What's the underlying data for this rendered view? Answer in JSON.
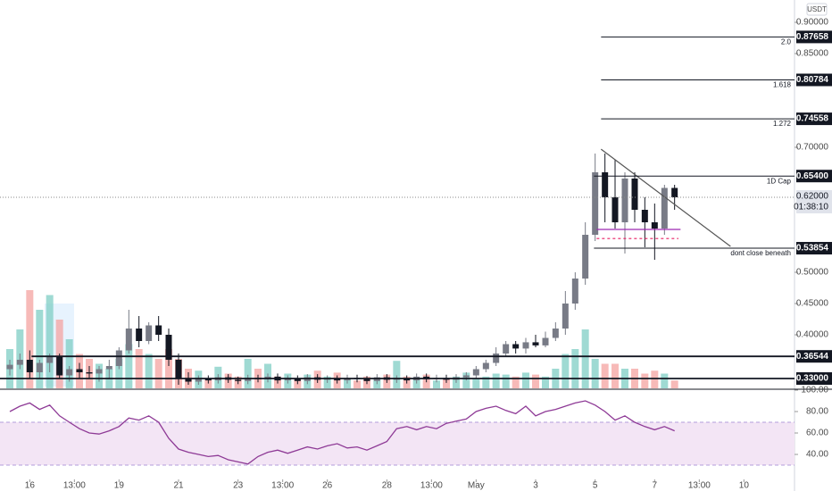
{
  "chart_data": {
    "type": "candlestick",
    "currency": "USDT",
    "x": [
      0.33,
      0.67,
      1,
      1.33,
      1.67,
      2,
      2.33,
      2.67,
      3,
      3.33,
      3.67,
      4,
      4.33,
      4.67,
      5,
      5.33,
      5.67,
      6,
      6.33,
      6.67,
      7,
      7.33,
      7.67,
      8,
      8.33,
      8.67,
      9,
      9.33,
      9.67,
      10,
      10.33,
      10.67,
      11,
      11.33,
      11.67,
      12,
      12.33,
      12.67,
      13,
      13.33,
      13.67,
      14,
      14.33,
      14.67,
      15,
      15.33,
      15.67,
      16,
      16.33,
      16.67,
      17,
      17.33,
      17.67,
      18,
      18.33,
      18.67,
      19,
      19.33,
      19.67,
      20,
      20.33,
      20.67,
      21,
      21.33,
      21.67,
      22,
      22.33,
      22.67
    ],
    "open": [
      0.345,
      0.352,
      0.36,
      0.34,
      0.355,
      0.365,
      0.335,
      0.345,
      0.34,
      0.338,
      0.345,
      0.35,
      0.375,
      0.41,
      0.39,
      0.415,
      0.4,
      0.36,
      0.33,
      0.325,
      0.33,
      0.327,
      0.332,
      0.328,
      0.326,
      0.331,
      0.329,
      0.333,
      0.327,
      0.33,
      0.326,
      0.332,
      0.328,
      0.33,
      0.327,
      0.331,
      0.329,
      0.326,
      0.332,
      0.328,
      0.33,
      0.327,
      0.333,
      0.329,
      0.331,
      0.328,
      0.332,
      0.335,
      0.345,
      0.355,
      0.37,
      0.385,
      0.378,
      0.388,
      0.383,
      0.395,
      0.41,
      0.45,
      0.49,
      0.56,
      0.66,
      0.62,
      0.58,
      0.65,
      0.6,
      0.58,
      0.57,
      0.635
    ],
    "high": [
      0.36,
      0.37,
      0.375,
      0.36,
      0.37,
      0.37,
      0.35,
      0.355,
      0.35,
      0.35,
      0.36,
      0.38,
      0.44,
      0.43,
      0.42,
      0.43,
      0.41,
      0.37,
      0.34,
      0.335,
      0.335,
      0.337,
      0.337,
      0.333,
      0.336,
      0.336,
      0.338,
      0.338,
      0.335,
      0.335,
      0.337,
      0.337,
      0.335,
      0.335,
      0.336,
      0.336,
      0.334,
      0.337,
      0.337,
      0.335,
      0.335,
      0.338,
      0.338,
      0.336,
      0.336,
      0.337,
      0.34,
      0.35,
      0.36,
      0.38,
      0.39,
      0.39,
      0.395,
      0.4,
      0.405,
      0.42,
      0.47,
      0.5,
      0.58,
      0.69,
      0.69,
      0.68,
      0.66,
      0.66,
      0.62,
      0.61,
      0.64,
      0.64
    ],
    "low": [
      0.335,
      0.345,
      0.33,
      0.33,
      0.34,
      0.33,
      0.325,
      0.33,
      0.33,
      0.325,
      0.33,
      0.345,
      0.37,
      0.38,
      0.385,
      0.39,
      0.35,
      0.32,
      0.32,
      0.32,
      0.322,
      0.322,
      0.323,
      0.321,
      0.321,
      0.324,
      0.324,
      0.322,
      0.322,
      0.321,
      0.321,
      0.323,
      0.323,
      0.322,
      0.322,
      0.324,
      0.321,
      0.321,
      0.323,
      0.323,
      0.322,
      0.322,
      0.324,
      0.324,
      0.323,
      0.323,
      0.327,
      0.33,
      0.34,
      0.35,
      0.365,
      0.37,
      0.37,
      0.38,
      0.38,
      0.39,
      0.4,
      0.44,
      0.48,
      0.55,
      0.58,
      0.57,
      0.53,
      0.58,
      0.54,
      0.52,
      0.56,
      0.6
    ],
    "close": [
      0.352,
      0.36,
      0.34,
      0.355,
      0.365,
      0.335,
      0.345,
      0.34,
      0.338,
      0.345,
      0.35,
      0.375,
      0.41,
      0.39,
      0.415,
      0.4,
      0.36,
      0.33,
      0.325,
      0.33,
      0.327,
      0.332,
      0.328,
      0.326,
      0.331,
      0.329,
      0.333,
      0.327,
      0.33,
      0.326,
      0.332,
      0.328,
      0.33,
      0.327,
      0.331,
      0.329,
      0.326,
      0.332,
      0.328,
      0.33,
      0.327,
      0.333,
      0.329,
      0.331,
      0.328,
      0.332,
      0.335,
      0.345,
      0.355,
      0.37,
      0.385,
      0.378,
      0.388,
      0.383,
      0.395,
      0.41,
      0.45,
      0.49,
      0.56,
      0.66,
      0.62,
      0.58,
      0.65,
      0.6,
      0.58,
      0.57,
      0.635,
      0.62
    ],
    "volume": [
      40,
      60,
      100,
      80,
      95,
      70,
      50,
      35,
      30,
      25,
      20,
      30,
      45,
      40,
      35,
      30,
      40,
      30,
      20,
      18,
      10,
      22,
      15,
      12,
      30,
      20,
      25,
      12,
      15,
      10,
      14,
      18,
      12,
      16,
      10,
      8,
      12,
      10,
      14,
      28,
      12,
      10,
      14,
      8,
      10,
      12,
      16,
      10,
      12,
      15,
      14,
      12,
      16,
      14,
      12,
      20,
      35,
      40,
      60,
      30,
      25,
      25,
      20,
      20,
      15,
      18,
      15,
      8
    ],
    "rsi": [
      80,
      85,
      88,
      82,
      86,
      76,
      70,
      64,
      60,
      59,
      62,
      66,
      74,
      72,
      76,
      70,
      55,
      45,
      42,
      40,
      38,
      39,
      35,
      33,
      31,
      38,
      42,
      44,
      41,
      44,
      47,
      45,
      48,
      50,
      46,
      47,
      44,
      48,
      52,
      64,
      66,
      63,
      66,
      64,
      69,
      71,
      73,
      80,
      83,
      85,
      81,
      78,
      85,
      76,
      80,
      82,
      85,
      88,
      90,
      86,
      80,
      72,
      76,
      70,
      66,
      63,
      66,
      62
    ],
    "up_color": "#787b86",
    "down_color": "#131722",
    "volume_up_color": "#7fcdc4",
    "volume_down_color": "#f4a3a0",
    "rsi_color": "#8e3a96",
    "xlim": [
      0,
      26.7
    ],
    "xticks": [
      {
        "value": 1,
        "label": "16"
      },
      {
        "value": 2.5,
        "label": "13:00"
      },
      {
        "value": 4,
        "label": "19"
      },
      {
        "value": 6,
        "label": "21"
      },
      {
        "value": 8,
        "label": "23"
      },
      {
        "value": 9.5,
        "label": "13:00"
      },
      {
        "value": 11,
        "label": "26"
      },
      {
        "value": 13,
        "label": "28"
      },
      {
        "value": 14.5,
        "label": "13:00"
      },
      {
        "value": 16,
        "label": "May"
      },
      {
        "value": 18,
        "label": "3"
      },
      {
        "value": 20,
        "label": "5"
      },
      {
        "value": 22,
        "label": "7"
      },
      {
        "value": 23.5,
        "label": "13:00"
      },
      {
        "value": 25,
        "label": "10"
      }
    ],
    "ylim": [
      0.3143,
      0.9357
    ],
    "yticks": [
      {
        "value": 0.9,
        "label": "0.90000"
      },
      {
        "value": 0.85,
        "label": "0.85000"
      },
      {
        "value": 0.7,
        "label": "0.70000"
      },
      {
        "value": 0.5,
        "label": "0.50000"
      },
      {
        "value": 0.45,
        "label": "0.45000"
      },
      {
        "value": 0.4,
        "label": "0.40000"
      }
    ],
    "rsi_lim": [
      16.7,
      100
    ],
    "rsi_ticks": [
      {
        "value": 100,
        "label": "100.00"
      },
      {
        "value": 80,
        "label": "80.00"
      },
      {
        "value": 60,
        "label": "60.00"
      },
      {
        "value": 40,
        "label": "40.00"
      }
    ],
    "rsi_band": [
      30,
      70
    ],
    "levels": [
      {
        "value": 0.87658,
        "label": "0.87658",
        "note": "2.0",
        "from": 20.2
      },
      {
        "value": 0.80784,
        "label": "0.80784",
        "note": "1.618",
        "from": 20.2
      },
      {
        "value": 0.74558,
        "label": "0.74558",
        "note": "1.272",
        "from": 20.2
      },
      {
        "value": 0.654,
        "label": "0.65400",
        "note": "1D Cap",
        "from": 19.96
      },
      {
        "value": 0.53854,
        "label": "0.53854",
        "note": "dont close beneath",
        "from": 19.96
      },
      {
        "value": 0.36544,
        "label": "0.36544",
        "from": 1.06,
        "thick": true
      },
      {
        "value": 0.33,
        "label": "0.33000",
        "from": 0,
        "thick": true
      }
    ],
    "price_line": {
      "value": 0.62,
      "label": "0.62000",
      "countdown": "01:38:10"
    },
    "drawings": [
      {
        "x": [
          20.2,
          24.55
        ],
        "y": [
          0.697,
          0.5414
        ],
        "color": "#555555"
      },
      {
        "x": [
          20.05,
          22.87
        ],
        "y": [
          0.5686,
          0.5686
        ],
        "color": "#9c27b0"
      },
      {
        "x": [
          20.05,
          22.8
        ],
        "y": [
          0.554,
          0.554
        ],
        "color": "#e91e63",
        "dash": true
      }
    ]
  }
}
